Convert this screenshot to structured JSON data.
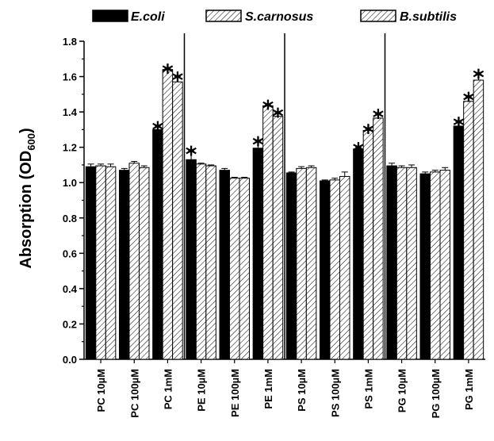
{
  "chart_data": {
    "type": "bar",
    "title": "",
    "xlabel": "",
    "ylabel": "Absorption (OD600)",
    "ylabel_main": "Absorption (OD",
    "ylabel_sub": "600",
    "ylabel_close": ")",
    "ylim": [
      0.0,
      1.8
    ],
    "yticks": [
      "0.0",
      "0.2",
      "0.4",
      "0.6",
      "0.8",
      "1.0",
      "1.2",
      "1.4",
      "1.6",
      "1.8"
    ],
    "categories": [
      "PC 10µM",
      "PC 100µM",
      "PC 1mM",
      "PE 10µM",
      "PE 100µM",
      "PE 1mM",
      "PS 10µM",
      "PS 100µM",
      "PS 1mM",
      "PG 10µM",
      "PG 100µM",
      "PG 1mM"
    ],
    "legend_position": "top",
    "grid": false,
    "group_separators_after": [
      2,
      5,
      8
    ],
    "significance_marker": "*",
    "series": [
      {
        "name": "E.coli",
        "fill": "#000000",
        "pattern": "solid",
        "values": [
          1.09,
          1.07,
          1.3,
          1.13,
          1.07,
          1.195,
          1.055,
          1.01,
          1.19,
          1.095,
          1.05,
          1.32
        ],
        "errors": [
          0.015,
          0.01,
          0.02,
          0.05,
          0.01,
          0.04,
          0.005,
          0.005,
          0.01,
          0.015,
          0.01,
          0.025
        ],
        "significant": [
          false,
          false,
          true,
          true,
          false,
          true,
          false,
          false,
          true,
          false,
          false,
          true
        ]
      },
      {
        "name": "S.carnosus",
        "fill": "#ffffff",
        "pattern": "hatch",
        "values": [
          1.095,
          1.11,
          1.64,
          1.105,
          1.025,
          1.435,
          1.08,
          1.015,
          1.295,
          1.085,
          1.06,
          1.46
        ],
        "errors": [
          0.01,
          0.01,
          0.005,
          0.005,
          0.005,
          0.005,
          0.01,
          0.01,
          0.01,
          0.01,
          0.01,
          0.025
        ],
        "significant": [
          false,
          false,
          true,
          false,
          false,
          true,
          false,
          false,
          true,
          false,
          false,
          true
        ]
      },
      {
        "name": "B.subtilis",
        "fill": "#ffffff",
        "pattern": "hatch",
        "values": [
          1.09,
          1.085,
          1.57,
          1.095,
          1.025,
          1.375,
          1.085,
          1.035,
          1.365,
          1.085,
          1.07,
          1.58
        ],
        "errors": [
          0.015,
          0.01,
          0.03,
          0.005,
          0.005,
          0.02,
          0.01,
          0.025,
          0.025,
          0.015,
          0.015,
          0.035
        ],
        "significant": [
          false,
          false,
          true,
          false,
          false,
          true,
          false,
          false,
          true,
          false,
          false,
          true
        ]
      }
    ]
  }
}
